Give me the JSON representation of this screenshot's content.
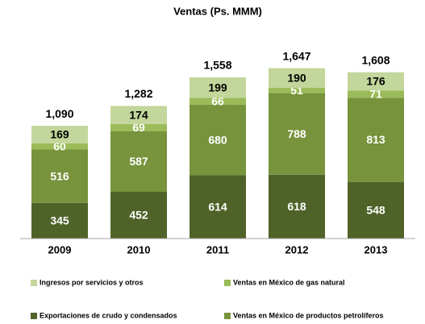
{
  "chart_data": {
    "type": "stacked_bar",
    "title": "Ventas (Ps. MMM)",
    "categories": [
      "2009",
      "2010",
      "2011",
      "2012",
      "2013"
    ],
    "series": [
      {
        "name": "Exportaciones de crudo y condensados",
        "color": "#4f6228",
        "values": [
          345,
          452,
          614,
          618,
          548
        ]
      },
      {
        "name": "Ventas en México de productos petrolíferos",
        "color": "#77933c",
        "values": [
          516,
          587,
          680,
          788,
          813
        ]
      },
      {
        "name": "Ventas en México de gas natural",
        "color": "#9bbb59",
        "values": [
          60,
          69,
          66,
          51,
          71
        ]
      },
      {
        "name": "Ingresos por servicios y otros",
        "color": "#c3d69b",
        "values": [
          169,
          174,
          199,
          190,
          176
        ]
      }
    ],
    "totals": {
      "values": [
        1090,
        1282,
        1558,
        1647,
        1608
      ],
      "value_labels": [
        "1,090",
        "1,282",
        "1,558",
        "1,647",
        "1,608"
      ]
    },
    "ylim": [
      0,
      1800
    ]
  }
}
